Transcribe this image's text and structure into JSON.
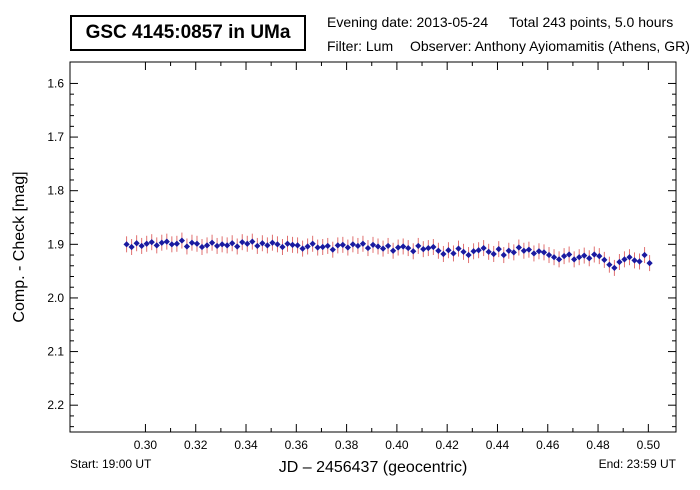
{
  "chart_data": {
    "type": "scatter",
    "title": "GSC 4145:0857 in UMa",
    "info": {
      "evening_date": "Evening date: 2013-05-24",
      "total": "Total 243 points, 5.0 hours",
      "filter": "Filter: Lum",
      "observer": "Observer: Anthony Ayiomamitis (Athens, GR)"
    },
    "xlabel": "JD – 2456437  (geocentric)",
    "ylabel": "Comp. - Check [mag]",
    "start_label": "Start: 19:00 UT",
    "end_label": "End: 23:59 UT",
    "xlim": [
      0.27,
      0.511
    ],
    "ylim": [
      2.25,
      1.56
    ],
    "y_inverted": true,
    "x_ticks": [
      "0.30",
      "0.32",
      "0.34",
      "0.36",
      "0.38",
      "0.40",
      "0.42",
      "0.44",
      "0.46",
      "0.48",
      "0.50"
    ],
    "y_ticks": [
      "1.6",
      "1.7",
      "1.8",
      "1.9",
      "2.0",
      "2.1",
      "2.2"
    ],
    "grid": false,
    "marker_color": "#1a1aa0",
    "errorbar_color": "#e07070",
    "series": [
      {
        "x": [
          0.2925,
          0.2945,
          0.2965,
          0.2985,
          0.3005,
          0.3025,
          0.3045,
          0.3065,
          0.3085,
          0.3105,
          0.3125,
          0.3145,
          0.3165,
          0.3185,
          0.3205,
          0.3225,
          0.3245,
          0.3265,
          0.3285,
          0.3305,
          0.3325,
          0.3345,
          0.3365,
          0.3385,
          0.3405,
          0.3425,
          0.3445,
          0.3465,
          0.3485,
          0.3505,
          0.3525,
          0.3545,
          0.3565,
          0.3585,
          0.3605,
          0.3625,
          0.3645,
          0.3665,
          0.3685,
          0.3705,
          0.3725,
          0.3745,
          0.3765,
          0.3785,
          0.3805,
          0.3825,
          0.3845,
          0.3865,
          0.3885,
          0.3905,
          0.3925,
          0.3945,
          0.3965,
          0.3985,
          0.4005,
          0.4025,
          0.4045,
          0.4065,
          0.4085,
          0.4105,
          0.4125,
          0.4145,
          0.4165,
          0.4185,
          0.4205,
          0.4225,
          0.4245,
          0.4265,
          0.4285,
          0.4305,
          0.4325,
          0.4345,
          0.4365,
          0.4385,
          0.4405,
          0.4425,
          0.4445,
          0.4465,
          0.4485,
          0.4505,
          0.4525,
          0.4545,
          0.4565,
          0.4585,
          0.4605,
          0.4625,
          0.4645,
          0.4665,
          0.4685,
          0.4705,
          0.4725,
          0.4745,
          0.4765,
          0.4785,
          0.4805,
          0.4825,
          0.4845,
          0.4865,
          0.4885,
          0.4905,
          0.4925,
          0.4945,
          0.4965,
          0.4985,
          0.5005
        ],
        "y": [
          1.9,
          1.905,
          1.898,
          1.903,
          1.899,
          1.896,
          1.902,
          1.897,
          1.895,
          1.9,
          1.899,
          1.893,
          1.904,
          1.897,
          1.899,
          1.905,
          1.902,
          1.897,
          1.903,
          1.9,
          1.902,
          1.898,
          1.904,
          1.896,
          1.899,
          1.895,
          1.903,
          1.898,
          1.902,
          1.897,
          1.9,
          1.905,
          1.899,
          1.901,
          1.902,
          1.908,
          1.904,
          1.899,
          1.906,
          1.905,
          1.903,
          1.91,
          1.902,
          1.901,
          1.906,
          1.9,
          1.903,
          1.899,
          1.907,
          1.901,
          1.904,
          1.908,
          1.903,
          1.912,
          1.906,
          1.904,
          1.907,
          1.913,
          1.903,
          1.909,
          1.907,
          1.905,
          1.912,
          1.918,
          1.911,
          1.917,
          1.908,
          1.914,
          1.92,
          1.913,
          1.911,
          1.907,
          1.914,
          1.918,
          1.909,
          1.92,
          1.912,
          1.915,
          1.906,
          1.912,
          1.91,
          1.917,
          1.913,
          1.915,
          1.92,
          1.924,
          1.928,
          1.922,
          1.919,
          1.928,
          1.924,
          1.921,
          1.926,
          1.919,
          1.922,
          1.929,
          1.938,
          1.944,
          1.933,
          1.928,
          1.924,
          1.93,
          1.932,
          1.92,
          1.935
        ]
      }
    ]
  }
}
